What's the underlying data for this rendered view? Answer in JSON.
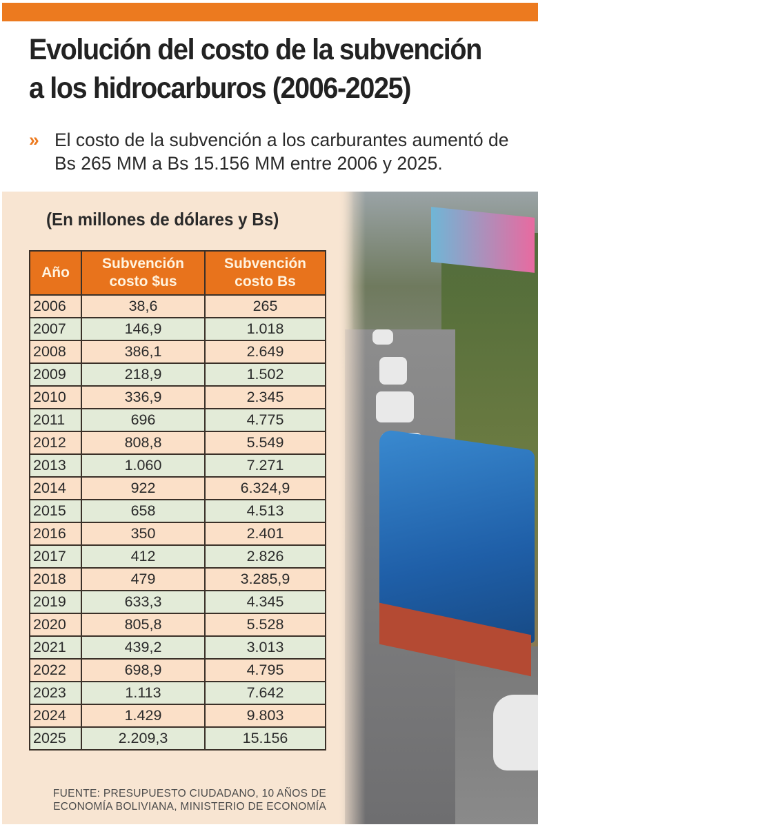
{
  "title": "Evolución del costo de la subvención a los hidrocarburos (2006-2025)",
  "subtitle": "El costo de la subvención a los carburantes aumentó de Bs 265 MM a Bs 15.156 MM entre 2006 y 2025.",
  "subtitle_icon": "double-chevron-right-icon",
  "unit_note": "(En millones de dólares y Bs)",
  "colors": {
    "accent": "#ec7a1f",
    "header": "#e8731c",
    "row_peach": "#fbe0c8",
    "row_green": "#e3ebd8",
    "panel": "#f8e5d2"
  },
  "table": {
    "headers": [
      "Año",
      "Subvención costo $us",
      "Subvención costo Bs"
    ],
    "rows": [
      [
        "2006",
        "38,6",
        "265"
      ],
      [
        "2007",
        "146,9",
        "1.018"
      ],
      [
        "2008",
        "386,1",
        "2.649"
      ],
      [
        "2009",
        "218,9",
        "1.502"
      ],
      [
        "2010",
        "336,9",
        "2.345"
      ],
      [
        "2011",
        "696",
        "4.775"
      ],
      [
        "2012",
        "808,8",
        "5.549"
      ],
      [
        "2013",
        "1.060",
        "7.271"
      ],
      [
        "2014",
        "922",
        "6.324,9"
      ],
      [
        "2015",
        "658",
        "4.513"
      ],
      [
        "2016",
        "350",
        "2.401"
      ],
      [
        "2017",
        "412",
        "2.826"
      ],
      [
        "2018",
        "479",
        "3.285,9"
      ],
      [
        "2019",
        "633,3",
        "4.345"
      ],
      [
        "2020",
        "805,8",
        "5.528"
      ],
      [
        "2021",
        "439,2",
        "3.013"
      ],
      [
        "2022",
        "698,9",
        "4.795"
      ],
      [
        "2023",
        "1.113",
        "7.642"
      ],
      [
        "2024",
        "1.429",
        "9.803"
      ],
      [
        "2025",
        "2.209,3",
        "15.156"
      ]
    ]
  },
  "source": "FUENTE: PRESUPUESTO CIUDADANO, 10 AÑOS DE ECONOMÍA BOLIVIANA, MINISTERIO DE ECONOMÍA"
}
